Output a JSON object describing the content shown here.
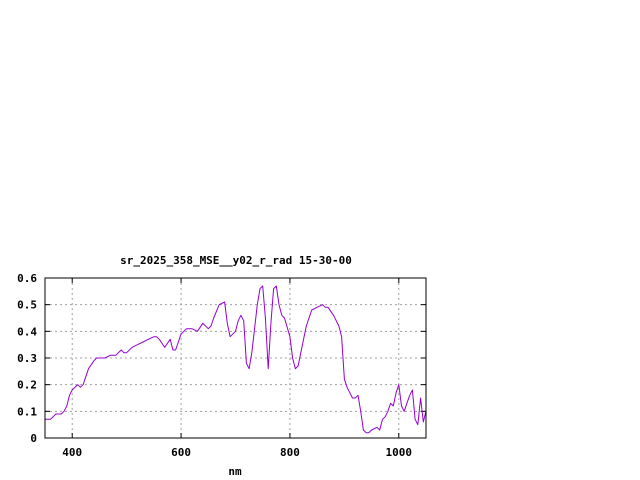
{
  "chart_data": {
    "type": "line",
    "title": "sr_2025_358_MSE__y02_r_rad 15-30-00",
    "xlabel": "nm",
    "ylabel": "",
    "xlim": [
      350,
      1050
    ],
    "ylim": [
      0,
      0.6
    ],
    "xticks": [
      400,
      600,
      800,
      1000
    ],
    "xtick_labels": [
      "400",
      "600",
      "800",
      "1000"
    ],
    "yticks": [
      0,
      0.1,
      0.2,
      0.3,
      0.4,
      0.5,
      0.6
    ],
    "ytick_labels": [
      "0",
      "0.1",
      "0.2",
      "0.3",
      "0.4",
      "0.5",
      "0.6"
    ],
    "grid": true,
    "line_color": "#9400d3",
    "series": [
      {
        "name": "",
        "x": [
          350,
          360,
          365,
          370,
          380,
          385,
          390,
          395,
          400,
          405,
          410,
          415,
          420,
          425,
          430,
          440,
          445,
          450,
          460,
          470,
          480,
          490,
          495,
          500,
          510,
          520,
          530,
          540,
          550,
          555,
          560,
          570,
          580,
          585,
          590,
          600,
          610,
          620,
          630,
          640,
          650,
          655,
          660,
          670,
          680,
          685,
          690,
          700,
          705,
          710,
          715,
          720,
          725,
          730,
          740,
          745,
          750,
          755,
          760,
          765,
          770,
          775,
          780,
          785,
          790,
          800,
          805,
          810,
          815,
          820,
          830,
          840,
          850,
          860,
          865,
          870,
          880,
          890,
          895,
          900,
          905,
          910,
          915,
          920,
          925,
          930,
          935,
          940,
          945,
          950,
          960,
          965,
          970,
          975,
          980,
          985,
          990,
          995,
          1000,
          1005,
          1010,
          1015,
          1020,
          1025,
          1030,
          1035,
          1040,
          1045,
          1050
        ],
        "y": [
          0.07,
          0.07,
          0.08,
          0.09,
          0.09,
          0.1,
          0.12,
          0.16,
          0.18,
          0.19,
          0.2,
          0.19,
          0.2,
          0.23,
          0.26,
          0.29,
          0.3,
          0.3,
          0.3,
          0.31,
          0.31,
          0.33,
          0.32,
          0.32,
          0.34,
          0.35,
          0.36,
          0.37,
          0.38,
          0.38,
          0.37,
          0.34,
          0.37,
          0.33,
          0.33,
          0.39,
          0.41,
          0.41,
          0.4,
          0.43,
          0.41,
          0.42,
          0.45,
          0.5,
          0.51,
          0.43,
          0.38,
          0.4,
          0.44,
          0.46,
          0.44,
          0.28,
          0.26,
          0.32,
          0.5,
          0.56,
          0.57,
          0.45,
          0.26,
          0.43,
          0.56,
          0.57,
          0.5,
          0.46,
          0.45,
          0.38,
          0.3,
          0.26,
          0.27,
          0.32,
          0.42,
          0.48,
          0.49,
          0.5,
          0.49,
          0.49,
          0.46,
          0.42,
          0.38,
          0.22,
          0.19,
          0.17,
          0.15,
          0.15,
          0.16,
          0.1,
          0.03,
          0.02,
          0.02,
          0.03,
          0.04,
          0.03,
          0.07,
          0.08,
          0.1,
          0.13,
          0.12,
          0.17,
          0.2,
          0.12,
          0.1,
          0.13,
          0.16,
          0.18,
          0.07,
          0.05,
          0.15,
          0.06,
          0.1
        ]
      }
    ]
  }
}
